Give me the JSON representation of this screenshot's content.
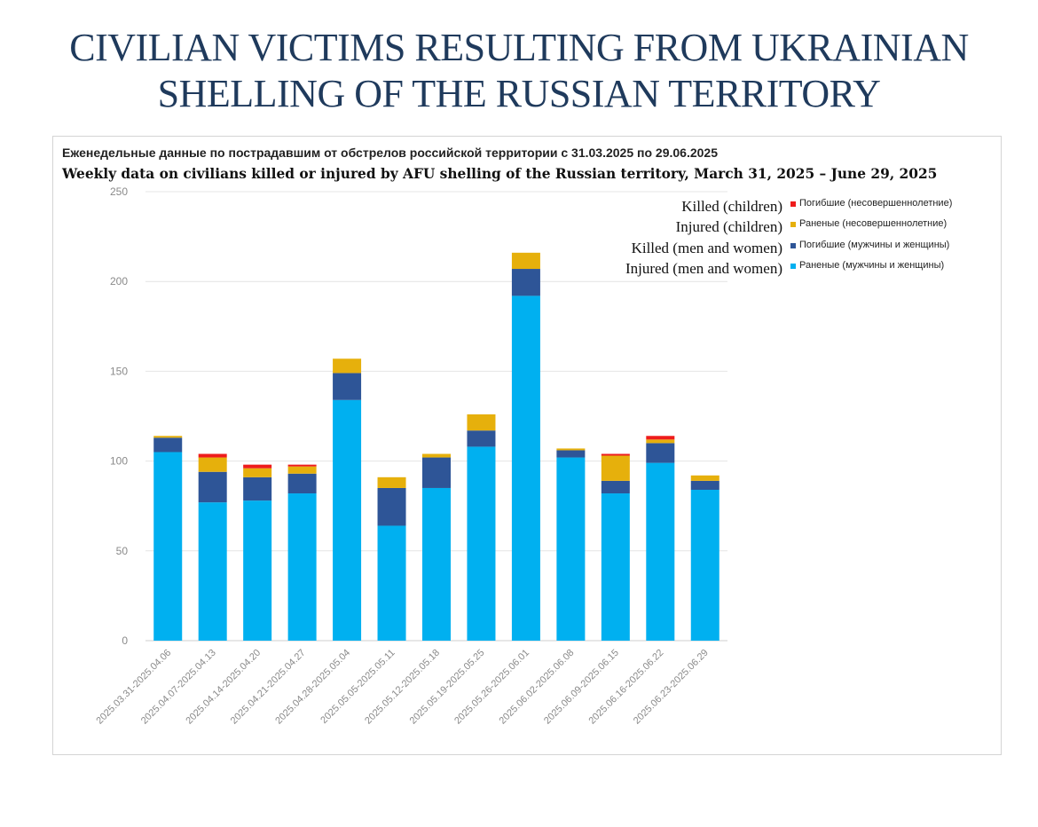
{
  "page": {
    "title_line1": "CIVILIAN VICTIMS RESULTING FROM UKRAINIAN",
    "title_line2": "SHELLING OF THE RUSSIAN TERRITORY"
  },
  "chart_data": {
    "type": "bar",
    "stacked": true,
    "title": "Еженедельные данные по пострадавшим от обстрелов российской территории с 31.03.2025 по 29.06.2025",
    "subtitle": "Weekly data on civilians killed or injured by AFU shelling of the Russian territory, March 31, 2025 – June 29, 2025",
    "xlabel": "",
    "ylabel": "",
    "ylim": [
      0,
      250
    ],
    "yticks": [
      0,
      50,
      100,
      150,
      200,
      250
    ],
    "grid": true,
    "legend_position": "top-right",
    "categories": [
      "2025.03.31-2025.04.06",
      "2025.04.07-2025.04.13",
      "2025.04.14-2025.04.20",
      "2025.04.21-2025.04.27",
      "2025.04.28-2025.05.04",
      "2025.05.05-2025.05.11",
      "2025.05.12-2025.05.18",
      "2025.05.19-2025.05.25",
      "2025.05.26-2025.06.01",
      "2025.06.02-2025.06.08",
      "2025.06.09-2025.06.15",
      "2025.06.16-2025.06.22",
      "2025.06.23-2025.06.29"
    ],
    "series": [
      {
        "name": "Раненые (мужчины и женщины)",
        "name_en": "Injured (men and women)",
        "color": "#00b0f0",
        "values": [
          105,
          77,
          78,
          82,
          134,
          64,
          85,
          108,
          192,
          102,
          82,
          99,
          84
        ]
      },
      {
        "name": "Погибшие (мужчины и женщины)",
        "name_en": "Killed (men and women)",
        "color": "#2e5597",
        "values": [
          8,
          17,
          13,
          11,
          15,
          21,
          17,
          9,
          15,
          4,
          7,
          11,
          5
        ]
      },
      {
        "name": "Раненые (несовершеннолетние)",
        "name_en": "Injured (children)",
        "color": "#e6b00c",
        "values": [
          1,
          8,
          5,
          4,
          8,
          6,
          2,
          9,
          9,
          1,
          14,
          2,
          3
        ]
      },
      {
        "name": "Погибшие (несовершеннолетние)",
        "name_en": "Killed (children)",
        "color": "#ee1c1c",
        "values": [
          0,
          2,
          2,
          1,
          0,
          0,
          0,
          0,
          0,
          0,
          1,
          2,
          0
        ]
      }
    ]
  }
}
